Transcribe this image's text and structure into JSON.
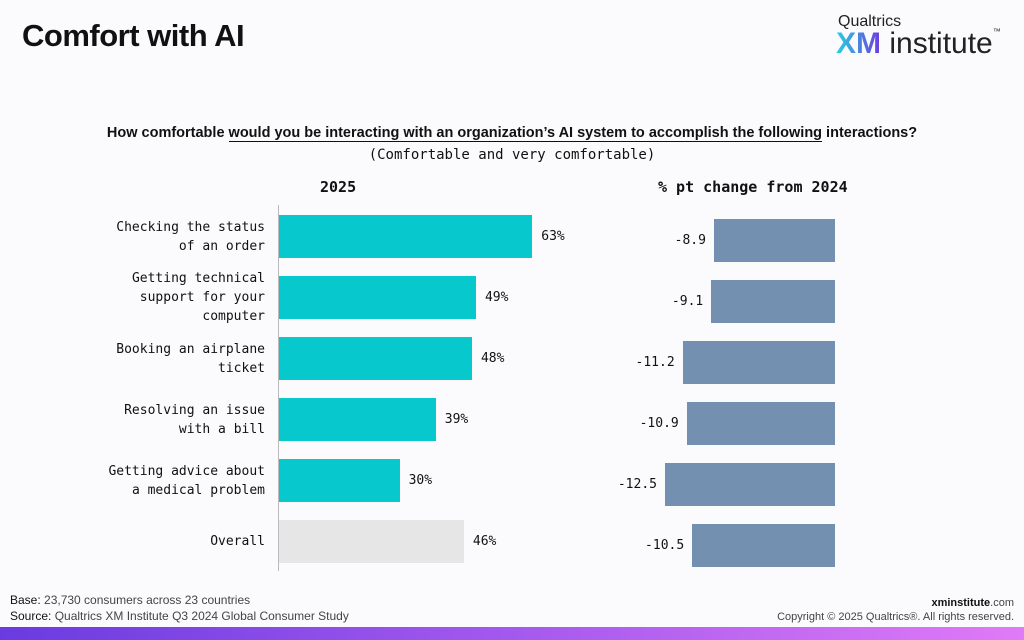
{
  "title": "Comfort with AI",
  "logo": {
    "top": "Qualtrics",
    "xm": "XM",
    "institute": "institute",
    "tm": "™"
  },
  "question": {
    "pre": "How comfortable ",
    "underlined": "would you be interacting with an organization’s AI system to accomplish the following",
    "post": " interactions?"
  },
  "subtitle": "(Comfortable and very comfortable)",
  "chart_data": [
    {
      "type": "bar",
      "orientation": "horizontal",
      "title": "2025",
      "categories": [
        "Checking the status of an order",
        "Getting technical support for your computer",
        "Booking an airplane ticket",
        "Resolving an issue with a bill",
        "Getting advice about a medical problem",
        "Overall"
      ],
      "values": [
        63,
        49,
        48,
        39,
        30,
        46
      ],
      "value_labels": [
        "63%",
        "49%",
        "48%",
        "39%",
        "30%",
        "46%"
      ],
      "colors": [
        "#06c8cd",
        "#06c8cd",
        "#06c8cd",
        "#06c8cd",
        "#06c8cd",
        "#e6e6e6"
      ],
      "xlim": [
        0,
        100
      ]
    },
    {
      "type": "bar",
      "orientation": "horizontal",
      "title": "% pt change from 2024",
      "categories": [
        "Checking the status of an order",
        "Getting technical support for your computer",
        "Booking an airplane ticket",
        "Resolving an issue with a bill",
        "Getting advice about a medical problem",
        "Overall"
      ],
      "values": [
        -8.9,
        -9.1,
        -11.2,
        -10.9,
        -12.5,
        -10.5
      ],
      "value_labels": [
        "-8.9",
        "-9.1",
        "-11.2",
        "-10.9",
        "-12.5",
        "-10.5"
      ],
      "color": "#7490b0"
    }
  ],
  "labels_wrapped": [
    [
      "Checking the status",
      "of an order"
    ],
    [
      "Getting technical",
      "support for your",
      "computer"
    ],
    [
      "Booking an airplane",
      "ticket"
    ],
    [
      "Resolving an issue",
      "with a bill"
    ],
    [
      "Getting advice about",
      "a medical problem"
    ],
    [
      "Overall"
    ]
  ],
  "footer": {
    "base_label": "Base:",
    "base": " 23,730 consumers across 23 countries",
    "source_label": "Source:",
    "source": " Qualtrics XM Institute Q3 2024 Global Consumer Study",
    "site_bold": "xminstitute",
    "site_rest": ".com",
    "copyright": "Copyright © 2025 Qualtrics®. All rights reserved."
  }
}
